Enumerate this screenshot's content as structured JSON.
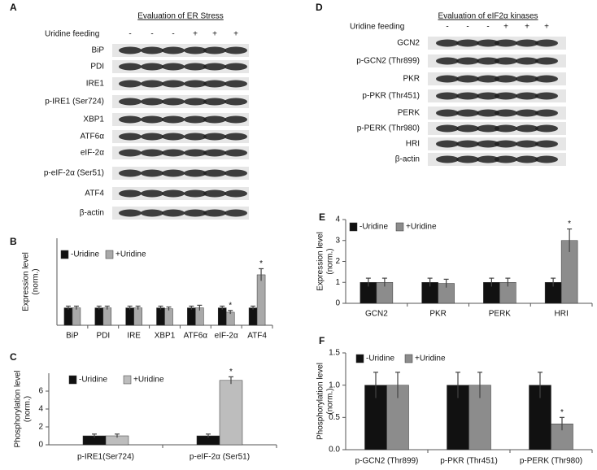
{
  "blots": [
    {
      "panel": "A",
      "title": "Evaluation of ER Stress",
      "condition_label": "Uridine feeding",
      "lanes": [
        "-",
        "-",
        "-",
        "+",
        "+",
        "+"
      ],
      "rows": [
        "BiP",
        "PDI",
        "IRE1",
        "p-IRE1 (Ser724)",
        "XBP1",
        "ATF6α",
        "eIF-2α",
        "p-eIF-2α (Ser51)",
        "ATF4",
        "β-actin"
      ]
    },
    {
      "panel": "D",
      "title": "Evaluation of eIF2α kinases",
      "condition_label": "Uridine feeding",
      "lanes": [
        "-",
        "-",
        "-",
        "+",
        "+",
        "+"
      ],
      "rows": [
        "GCN2",
        "p-GCN2 (Thr899)",
        "PKR",
        "p-PKR (Thr451)",
        "PERK",
        "p-PERK (Thr980)",
        "HRI",
        "β-actin"
      ]
    }
  ],
  "chart_data": [
    {
      "type": "bar",
      "panel": "B",
      "ylabel_lines": [
        "Expression level",
        "(norm.)"
      ],
      "categories": [
        "BiP",
        "PDI",
        "IRE",
        "XBP1",
        "ATF6α",
        "eIF-2α",
        "ATF4"
      ],
      "series": [
        {
          "name": "-Uridine",
          "color": "#111111",
          "values": [
            1.0,
            1.0,
            1.0,
            1.0,
            1.0,
            1.0,
            1.0
          ],
          "errors": [
            0.1,
            0.1,
            0.1,
            0.1,
            0.1,
            0.1,
            0.1
          ]
        },
        {
          "name": "+Uridine",
          "color": "#a9a9a9",
          "values": [
            1.0,
            1.0,
            1.0,
            0.95,
            1.0,
            0.75,
            2.9
          ],
          "errors": [
            0.1,
            0.1,
            0.1,
            0.1,
            0.15,
            0.1,
            0.35
          ],
          "annotations": [
            null,
            null,
            null,
            null,
            null,
            "*",
            "*"
          ]
        }
      ],
      "ylim": [
        0,
        5
      ]
    },
    {
      "type": "bar",
      "panel": "C",
      "ylabel_lines": [
        "Phosphorylation level",
        "(norm.)"
      ],
      "categories": [
        "p-IRE1(Ser724)",
        "p-eIF-2α (Ser51)"
      ],
      "series": [
        {
          "name": "-Uridine",
          "color": "#111111",
          "values": [
            1.0,
            1.0
          ],
          "errors": [
            0.2,
            0.2
          ]
        },
        {
          "name": "+Uridine",
          "color": "#bdbdbd",
          "values": [
            1.0,
            7.2
          ],
          "errors": [
            0.2,
            0.4
          ],
          "annotations": [
            null,
            "*"
          ]
        }
      ],
      "ylim": [
        0,
        8
      ],
      "yticks": [
        0,
        2,
        4,
        6
      ]
    },
    {
      "type": "bar",
      "panel": "E",
      "ylabel_lines": [
        "Expression level",
        "(norm.)"
      ],
      "categories": [
        "GCN2",
        "PKR",
        "PERK",
        "HRI"
      ],
      "series": [
        {
          "name": "-Uridine",
          "color": "#111111",
          "values": [
            1.0,
            1.0,
            1.0,
            1.0
          ],
          "errors": [
            0.2,
            0.2,
            0.2,
            0.2
          ]
        },
        {
          "name": "+Uridine",
          "color": "#8c8c8c",
          "values": [
            1.0,
            0.95,
            1.0,
            3.0
          ],
          "errors": [
            0.2,
            0.2,
            0.2,
            0.55
          ],
          "annotations": [
            null,
            null,
            null,
            "*"
          ]
        }
      ],
      "ylim": [
        0,
        4
      ],
      "yticks": [
        0,
        1,
        2,
        3,
        4
      ]
    },
    {
      "type": "bar",
      "panel": "F",
      "ylabel_lines": [
        "Phosphorylation level",
        "(norm.)"
      ],
      "categories": [
        "p-GCN2 (Thr899)",
        "p-PKR (Thr451)",
        "p-PERK (Thr980)"
      ],
      "series": [
        {
          "name": "-Uridine",
          "color": "#111111",
          "values": [
            1.0,
            1.0,
            1.0
          ],
          "errors": [
            0.2,
            0.2,
            0.2
          ]
        },
        {
          "name": "+Uridine",
          "color": "#8c8c8c",
          "values": [
            1.0,
            1.0,
            0.4
          ],
          "errors": [
            0.2,
            0.2,
            0.1
          ],
          "annotations": [
            null,
            null,
            "*"
          ]
        }
      ],
      "ylim": [
        0,
        1.5
      ],
      "yticks": [
        {
          "value": 0,
          "label": "0.0"
        },
        0.5,
        {
          "value": 1,
          "label": "1.0"
        },
        1.5
      ]
    }
  ]
}
